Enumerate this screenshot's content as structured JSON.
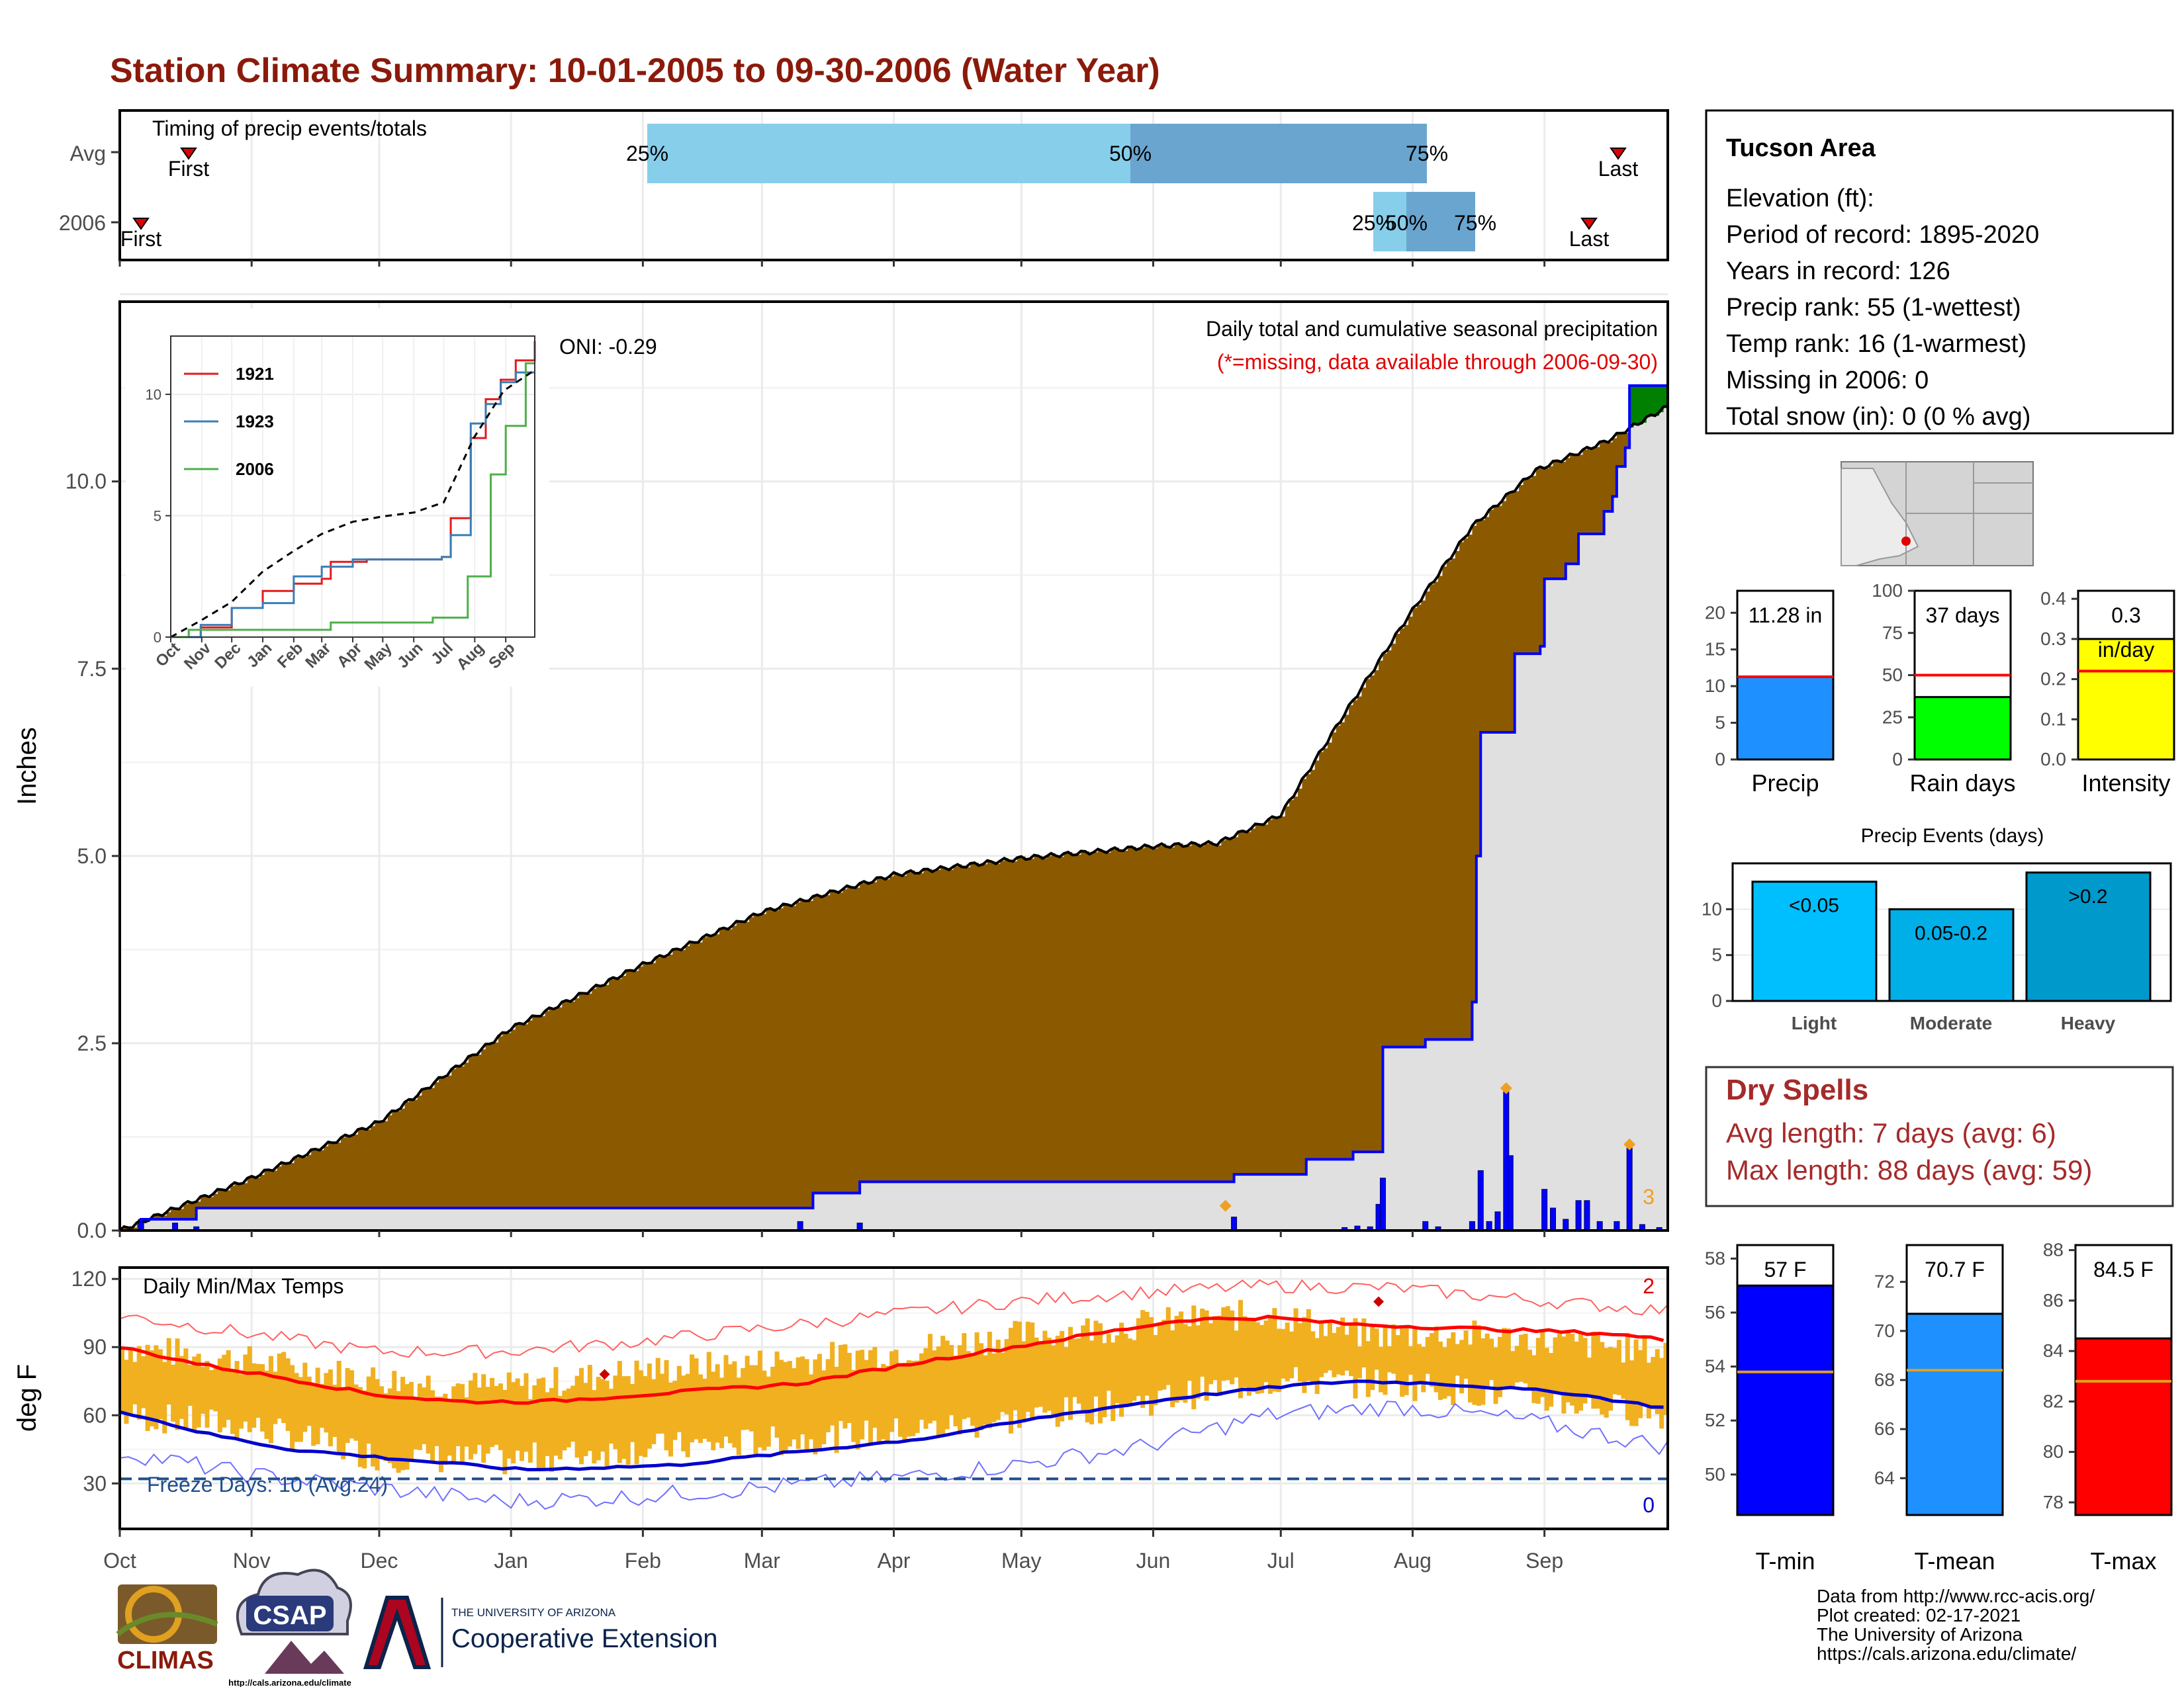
{
  "title": "Station Climate Summary: 10-01-2005 to 09-30-2006 (Water Year)",
  "colors": {
    "title": "#8b1a0a",
    "avg_cumulative": "#8b5a00",
    "above_avg": "#008000",
    "season_line": "#0000ff",
    "daily_bar": "#0000ff",
    "panel_bg": "#e0e0e0",
    "temp_band": "#f0b020",
    "tmax_line": "#ff0000",
    "tmin_line": "#0000cc",
    "freeze_line": "#1f4e8c"
  },
  "timing_panel": {
    "label": "Timing of precip events/totals",
    "rows": [
      "Avg",
      "2006"
    ],
    "avg": {
      "first": "First",
      "last": "Last",
      "p25": "25%",
      "p50": "50%",
      "p75": "75%"
    },
    "y2006": {
      "first": "First",
      "last": "Last",
      "p25": "25%",
      "p50": "50%",
      "p75": "75%"
    }
  },
  "precip_panel": {
    "ylabel": "Inches",
    "yticks": [
      "0.0",
      "2.5",
      "5.0",
      "7.5",
      "10.0"
    ],
    "oni": "ONI: -0.29",
    "subtitle": "Daily total and cumulative seasonal precipitation",
    "missing_note": "(*=missing, data available through 2006-09-30)",
    "count_label": "3"
  },
  "inset": {
    "legend": [
      "1921",
      "1923",
      "2006"
    ],
    "yticks": [
      "0",
      "5",
      "10"
    ],
    "xticks": [
      "Oct",
      "Nov",
      "Dec",
      "Jan",
      "Feb",
      "Mar",
      "Apr",
      "May",
      "Jun",
      "Jul",
      "Aug",
      "Sep"
    ]
  },
  "temp_panel": {
    "ylabel": "deg F",
    "title": "Daily Min/Max Temps",
    "yticks": [
      "30",
      "60",
      "90",
      "120"
    ],
    "freeze_label": "Freeze Days: 10 (Avg:24)",
    "record_high_count": "2",
    "record_low_count": "0"
  },
  "months": [
    "Oct",
    "Nov",
    "Dec",
    "Jan",
    "Feb",
    "Mar",
    "Apr",
    "May",
    "Jun",
    "Jul",
    "Aug",
    "Sep"
  ],
  "info_box": {
    "name": "Tucson Area",
    "lines": [
      "Elevation (ft):",
      "Period of record: 1895-2020",
      "Years in record: 126",
      "Precip rank: 55 (1-wettest)",
      "Temp rank: 16 (1-warmest)",
      "Missing in 2006: 0",
      "Total snow (in): 0 (0 % avg)"
    ]
  },
  "precip_bars": [
    {
      "label": "Precip",
      "value_label": "11.28 in",
      "ticks": [
        "0",
        "5",
        "10",
        "15",
        "20"
      ]
    },
    {
      "label": "Rain days",
      "value_label": "37 days",
      "ticks": [
        "0",
        "25",
        "50",
        "75",
        "100"
      ]
    },
    {
      "label": "Intensity",
      "value_label": "0.3",
      "value_label2": "in/day",
      "ticks": [
        "0.0",
        "0.1",
        "0.2",
        "0.3",
        "0.4"
      ]
    }
  ],
  "events": {
    "title": "Precip Events (days)",
    "ticks": [
      "0",
      "5",
      "10"
    ],
    "bars": [
      {
        "label": "Light",
        "range": "<0.05"
      },
      {
        "label": "Moderate",
        "range": "0.05-0.2"
      },
      {
        "label": "Heavy",
        "range": ">0.2"
      }
    ]
  },
  "dry_spells": {
    "title": "Dry Spells",
    "avg": "Avg length: 7 days (avg: 6)",
    "max": "Max length: 88 days (avg: 59)"
  },
  "temp_bars": [
    {
      "label": "T-min",
      "value_label": "57 F",
      "ticks": [
        "50",
        "52",
        "54",
        "56",
        "58"
      ]
    },
    {
      "label": "T-mean",
      "value_label": "70.7 F",
      "ticks": [
        "64",
        "66",
        "68",
        "70",
        "72"
      ]
    },
    {
      "label": "T-max",
      "value_label": "84.5 F",
      "ticks": [
        "78",
        "80",
        "82",
        "84",
        "86",
        "88"
      ]
    }
  ],
  "credits": {
    "lines": [
      "Data from http://www.rcc-acis.org/",
      "Plot created: 02-17-2021",
      "The University of Arizona",
      "https://cals.arizona.edu/climate/"
    ],
    "climas": "CLIMAS",
    "csap": "CSAP",
    "csap_url": "http://cals.arizona.edu/climate",
    "ua_small": "THE UNIVERSITY OF ARIZONA",
    "ua_big": "Cooperative Extension"
  },
  "chart_data": [
    {
      "type": "area",
      "name": "cumulative_precip",
      "ylabel": "Inches",
      "ylim": [
        0,
        12.4
      ],
      "x_months": [
        "Oct",
        "Nov",
        "Dec",
        "Jan",
        "Feb",
        "Mar",
        "Apr",
        "May",
        "Jun",
        "Jul",
        "Aug",
        "Sep"
      ],
      "avg_cumulative": [
        [
          0,
          0
        ],
        [
          30,
          0.68
        ],
        [
          61,
          1.45
        ],
        [
          92,
          2.7
        ],
        [
          123,
          3.55
        ],
        [
          151,
          4.25
        ],
        [
          182,
          4.75
        ],
        [
          212,
          4.97
        ],
        [
          243,
          5.13
        ],
        [
          258,
          5.17
        ],
        [
          273,
          5.55
        ],
        [
          288,
          6.9
        ],
        [
          303,
          8.2
        ],
        [
          318,
          9.4
        ],
        [
          333,
          10.15
        ],
        [
          350,
          10.55
        ],
        [
          364,
          11.0
        ]
      ],
      "season_2006_steps": [
        [
          0,
          0
        ],
        [
          5,
          0.15
        ],
        [
          18,
          0.3
        ],
        [
          160,
          0.3
        ],
        [
          163,
          0.5
        ],
        [
          174,
          0.65
        ],
        [
          260,
          0.65
        ],
        [
          262,
          0.75
        ],
        [
          277,
          0.75
        ],
        [
          279,
          0.95
        ],
        [
          290,
          1.05
        ],
        [
          296,
          1.05
        ],
        [
          297,
          2.45
        ],
        [
          306,
          2.45
        ],
        [
          307,
          2.55
        ],
        [
          317,
          2.55
        ],
        [
          318,
          3.05
        ],
        [
          319,
          5.0
        ],
        [
          320,
          6.65
        ],
        [
          327,
          6.65
        ],
        [
          328,
          7.7
        ],
        [
          334,
          7.8
        ],
        [
          335,
          8.7
        ],
        [
          340,
          8.9
        ],
        [
          343,
          9.3
        ],
        [
          349,
          9.6
        ],
        [
          351,
          9.8
        ],
        [
          352,
          10.2
        ],
        [
          354,
          10.45
        ],
        [
          355,
          11.28
        ],
        [
          364,
          11.28
        ]
      ],
      "daily_bars": [
        [
          5,
          0.15
        ],
        [
          13,
          0.1
        ],
        [
          18,
          0.05
        ],
        [
          160,
          0.12
        ],
        [
          174,
          0.1
        ],
        [
          262,
          0.18
        ],
        [
          288,
          0.04
        ],
        [
          291,
          0.06
        ],
        [
          294,
          0.05
        ],
        [
          296,
          0.35
        ],
        [
          297,
          0.7
        ],
        [
          307,
          0.12
        ],
        [
          310,
          0.05
        ],
        [
          318,
          0.12
        ],
        [
          320,
          0.8
        ],
        [
          322,
          0.12
        ],
        [
          324,
          0.25
        ],
        [
          326,
          1.85
        ],
        [
          327,
          1.0
        ],
        [
          335,
          0.55
        ],
        [
          337,
          0.3
        ],
        [
          340,
          0.15
        ],
        [
          343,
          0.4
        ],
        [
          345,
          0.4
        ],
        [
          348,
          0.12
        ],
        [
          352,
          0.12
        ],
        [
          355,
          1.1
        ],
        [
          358,
          0.08
        ],
        [
          362,
          0.04
        ]
      ],
      "record_markers": [
        [
          260,
          0.33
        ],
        [
          326,
          1.9
        ],
        [
          355,
          1.15
        ]
      ]
    },
    {
      "type": "line",
      "name": "inset_cumulative_comparison",
      "x_months": [
        "Oct",
        "Nov",
        "Dec",
        "Jan",
        "Feb",
        "Mar",
        "Apr",
        "May",
        "Jun",
        "Jul",
        "Aug",
        "Sep"
      ],
      "ylim": [
        0,
        12
      ],
      "series": [
        {
          "name": "1921",
          "values": [
            [
              0,
              0
            ],
            [
              30,
              0.4
            ],
            [
              61,
              1.2
            ],
            [
              92,
              1.9
            ],
            [
              123,
              2.2
            ],
            [
              151,
              2.4
            ],
            [
              160,
              3.1
            ],
            [
              196,
              3.2
            ],
            [
              271,
              3.3
            ],
            [
              280,
              4.9
            ],
            [
              300,
              8.2
            ],
            [
              315,
              9.8
            ],
            [
              330,
              10.6
            ],
            [
              345,
              11.4
            ],
            [
              364,
              12.2
            ]
          ]
        },
        {
          "name": "1923",
          "values": [
            [
              0,
              0
            ],
            [
              30,
              0.5
            ],
            [
              61,
              1.2
            ],
            [
              92,
              1.4
            ],
            [
              123,
              2.5
            ],
            [
              151,
              2.9
            ],
            [
              182,
              3.2
            ],
            [
              271,
              3.3
            ],
            [
              280,
              4.2
            ],
            [
              300,
              8.8
            ],
            [
              315,
              9.6
            ],
            [
              330,
              10.5
            ],
            [
              345,
              10.9
            ],
            [
              364,
              10.9
            ]
          ]
        },
        {
          "name": "2006",
          "values": [
            [
              0,
              0
            ],
            [
              18,
              0.3
            ],
            [
              160,
              0.6
            ],
            [
              262,
              0.8
            ],
            [
              297,
              2.5
            ],
            [
              320,
              6.7
            ],
            [
              335,
              8.7
            ],
            [
              355,
              11.28
            ],
            [
              364,
              11.28
            ]
          ]
        },
        {
          "name": "avg",
          "values": [
            [
              0,
              0
            ],
            [
              30,
              0.68
            ],
            [
              61,
              1.45
            ],
            [
              92,
              2.7
            ],
            [
              123,
              3.55
            ],
            [
              151,
              4.25
            ],
            [
              182,
              4.75
            ],
            [
              212,
              4.97
            ],
            [
              243,
              5.13
            ],
            [
              273,
              5.55
            ],
            [
              303,
              8.2
            ],
            [
              333,
              10.15
            ],
            [
              364,
              11.0
            ]
          ]
        }
      ]
    },
    {
      "type": "line",
      "name": "daily_temps",
      "ylabel": "deg F",
      "ylim": [
        10,
        125
      ],
      "x_months": [
        "Oct",
        "Nov",
        "Dec",
        "Jan",
        "Feb",
        "Mar",
        "Apr",
        "May",
        "Jun",
        "Jul",
        "Aug",
        "Sep"
      ],
      "avg_tmax": [
        [
          0,
          90
        ],
        [
          20,
          82
        ],
        [
          40,
          76
        ],
        [
          60,
          69
        ],
        [
          80,
          66
        ],
        [
          100,
          66
        ],
        [
          130,
          70
        ],
        [
          160,
          74
        ],
        [
          190,
          84
        ],
        [
          220,
          93
        ],
        [
          250,
          102
        ],
        [
          270,
          103
        ],
        [
          290,
          100
        ],
        [
          320,
          98
        ],
        [
          350,
          96
        ],
        [
          364,
          93
        ]
      ],
      "avg_tmin": [
        [
          0,
          62
        ],
        [
          20,
          52
        ],
        [
          40,
          45
        ],
        [
          70,
          40
        ],
        [
          95,
          36
        ],
        [
          130,
          38
        ],
        [
          160,
          44
        ],
        [
          190,
          50
        ],
        [
          220,
          60
        ],
        [
          250,
          68
        ],
        [
          275,
          73
        ],
        [
          290,
          75
        ],
        [
          310,
          74
        ],
        [
          340,
          70
        ],
        [
          364,
          63
        ]
      ],
      "record_high": [
        [
          0,
          104
        ],
        [
          30,
          96
        ],
        [
          60,
          88
        ],
        [
          90,
          88
        ],
        [
          120,
          92
        ],
        [
          150,
          98
        ],
        [
          180,
          104
        ],
        [
          210,
          110
        ],
        [
          240,
          114
        ],
        [
          270,
          117
        ],
        [
          300,
          116
        ],
        [
          330,
          111
        ],
        [
          364,
          106
        ]
      ],
      "record_low": [
        [
          0,
          44
        ],
        [
          30,
          34
        ],
        [
          60,
          28
        ],
        [
          90,
          22
        ],
        [
          120,
          24
        ],
        [
          150,
          28
        ],
        [
          180,
          32
        ],
        [
          210,
          38
        ],
        [
          240,
          46
        ],
        [
          270,
          60
        ],
        [
          300,
          64
        ],
        [
          330,
          58
        ],
        [
          364,
          46
        ]
      ],
      "tmax_2006_approx": [
        [
          0,
          90
        ],
        [
          30,
          84
        ],
        [
          60,
          76
        ],
        [
          90,
          72
        ],
        [
          120,
          79
        ],
        [
          150,
          83
        ],
        [
          180,
          88
        ],
        [
          210,
          95
        ],
        [
          240,
          100
        ],
        [
          270,
          105
        ],
        [
          290,
          96
        ],
        [
          320,
          95
        ],
        [
          364,
          88
        ]
      ],
      "tmin_2006_approx": [
        [
          0,
          60
        ],
        [
          30,
          55
        ],
        [
          60,
          42
        ],
        [
          90,
          40
        ],
        [
          120,
          45
        ],
        [
          150,
          48
        ],
        [
          180,
          52
        ],
        [
          210,
          58
        ],
        [
          240,
          66
        ],
        [
          270,
          75
        ],
        [
          300,
          74
        ],
        [
          330,
          68
        ],
        [
          364,
          60
        ]
      ],
      "freeze_threshold": 32,
      "record_markers": [
        [
          114,
          78
        ],
        [
          296,
          110
        ]
      ]
    },
    {
      "type": "bar",
      "name": "season_precip",
      "categories": [
        "Precip"
      ],
      "values": [
        11.28
      ],
      "average": 11.28,
      "ylim": [
        0,
        23
      ]
    },
    {
      "type": "bar",
      "name": "rain_days",
      "categories": [
        "Rain days"
      ],
      "values": [
        37
      ],
      "average": 50,
      "ylim": [
        0,
        100
      ]
    },
    {
      "type": "bar",
      "name": "intensity",
      "categories": [
        "Intensity"
      ],
      "values": [
        0.3
      ],
      "average": 0.22,
      "ylim": [
        0,
        0.42
      ]
    },
    {
      "type": "bar",
      "name": "precip_events",
      "categories": [
        "Light",
        "Moderate",
        "Heavy"
      ],
      "values": [
        13,
        10,
        14
      ],
      "ylim": [
        0,
        15
      ]
    },
    {
      "type": "bar",
      "name": "t_min",
      "categories": [
        "T-min"
      ],
      "values": [
        57
      ],
      "average": 53.8,
      "ylim": [
        48.5,
        58.5
      ]
    },
    {
      "type": "bar",
      "name": "t_mean",
      "categories": [
        "T-mean"
      ],
      "values": [
        70.7
      ],
      "average": 68.4,
      "ylim": [
        62.5,
        73.5
      ]
    },
    {
      "type": "bar",
      "name": "t_max",
      "categories": [
        "T-max"
      ],
      "values": [
        84.5
      ],
      "average": 82.8,
      "ylim": [
        77.5,
        88.2
      ]
    }
  ]
}
